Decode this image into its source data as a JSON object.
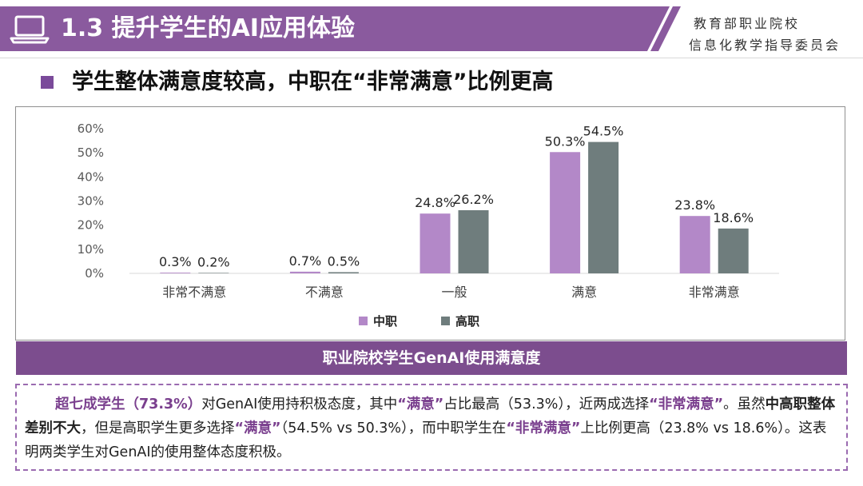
{
  "header": {
    "title": "1.3 提升学生的AI应用体验",
    "org_line1": "教育部职业院校",
    "org_line2": "信息化教学指导委员会"
  },
  "subtitle": "学生整体满意度较高，中职在“非常满意”比例更高",
  "chart_data": {
    "type": "bar",
    "title": "职业院校学生GenAI使用满意度",
    "categories": [
      "非常不满意",
      "不满意",
      "一般",
      "满意",
      "非常满意"
    ],
    "series": [
      {
        "name": "中职",
        "color": "#b388c8",
        "values": [
          0.3,
          0.7,
          24.8,
          50.3,
          23.8
        ]
      },
      {
        "name": "高职",
        "color": "#6f7d7d",
        "values": [
          0.2,
          0.5,
          26.2,
          54.5,
          18.6
        ]
      }
    ],
    "ylim": [
      0,
      60
    ],
    "yticks": [
      "0%",
      "10%",
      "20%",
      "30%",
      "40%",
      "50%",
      "60%"
    ],
    "value_suffix": "%",
    "legend_position": "bottom",
    "grid": false
  },
  "summary": {
    "p1": "超七成学生（73.3%）",
    "p2": "对GenAI使用持积极态度，其中",
    "p3": "“满意”",
    "p4": "占比最高（53.3%），近两成选择",
    "p5": "“非常满意”",
    "p6": "。虽然",
    "p7": "中高职整体差别不大",
    "p8": "，但是高职学生更多选择",
    "p9": "“满意”",
    "p10": "（54.5% vs 50.3%），而中职学生在",
    "p11": "“非常满意”",
    "p12": "上比例更高（23.8% vs 18.6%）。这表明两类学生对GenAI的使用整体态度积极。"
  },
  "colors": {
    "header_band": "#8a5a9e",
    "accent": "#7c4d8e"
  }
}
